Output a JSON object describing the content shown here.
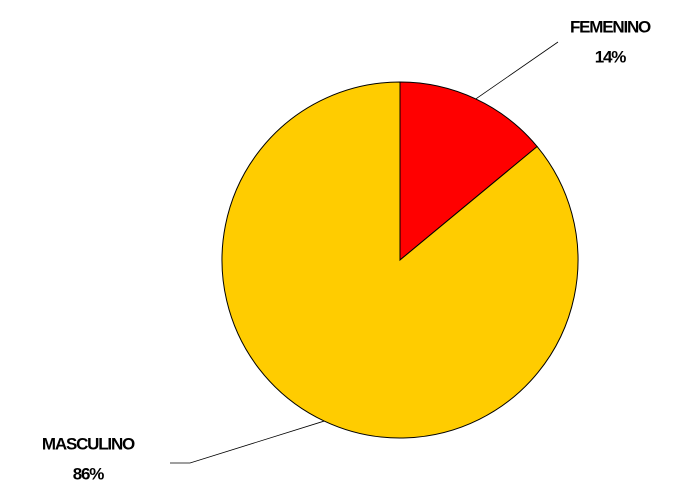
{
  "chart_data": {
    "type": "pie",
    "categories": [
      "FEMENINO",
      "MASCULINO"
    ],
    "values": [
      14,
      86
    ],
    "value_labels": [
      "14%",
      "86%"
    ],
    "colors": [
      "#ff0000",
      "#ffcc00"
    ]
  }
}
